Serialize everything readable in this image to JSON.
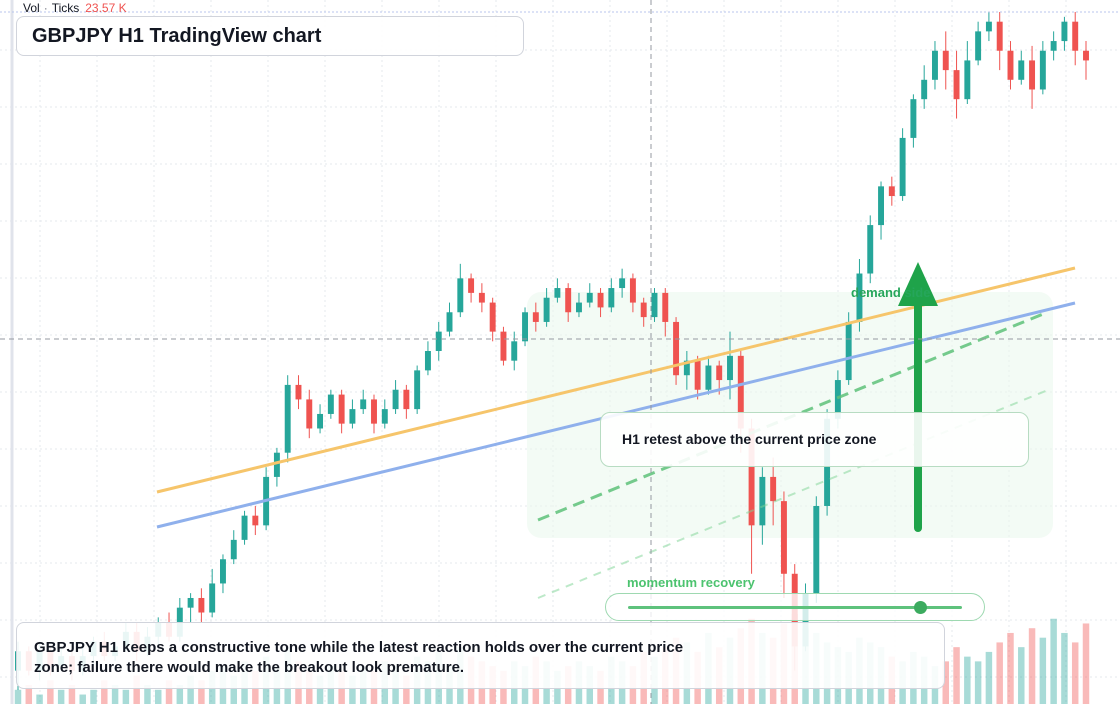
{
  "header": {
    "title": "GBPJPY H1 TradingView chart"
  },
  "volume_legend": {
    "label": "Vol",
    "source": "Ticks",
    "value": "23.57 K"
  },
  "annotations": {
    "callout": "H1 retest above the current price zone",
    "zone_label": "demand side",
    "momentum_label": "momentum recovery",
    "momentum_level": 0.87,
    "note": "GBPJPY H1 keeps a constructive tone while the latest reaction holds over the current price zone; failure there would make the breakout look premature."
  },
  "colors": {
    "up": "#26a69a",
    "down": "#ef5350",
    "trend_orange": "#f6c56b",
    "trend_blue": "#8fb0ec",
    "signal_green": "#1fa34a",
    "grid": "#e6e8ee"
  },
  "chart_data": {
    "type": "candlestick",
    "series": [
      {
        "name": "price",
        "relative_ohlc": [
          [
            40,
            44,
            36,
            46
          ],
          [
            44,
            40,
            39,
            45
          ],
          [
            40,
            44,
            38,
            46
          ],
          [
            44,
            41,
            39,
            45
          ],
          [
            41,
            43,
            40,
            45
          ],
          [
            43,
            40,
            38,
            44
          ],
          [
            40,
            43,
            39,
            45
          ],
          [
            43,
            46,
            41,
            47
          ],
          [
            46,
            43,
            42,
            48
          ],
          [
            43,
            45,
            42,
            46
          ],
          [
            45,
            48,
            44,
            50
          ],
          [
            48,
            44,
            42,
            50
          ],
          [
            44,
            47,
            43,
            49
          ],
          [
            47,
            50,
            45,
            51
          ],
          [
            50,
            47,
            46,
            52
          ],
          [
            47,
            53,
            46,
            55
          ],
          [
            53,
            55,
            50,
            56
          ],
          [
            55,
            52,
            50,
            57
          ],
          [
            52,
            58,
            51,
            61
          ],
          [
            58,
            63,
            56,
            64
          ],
          [
            63,
            67,
            62,
            69
          ],
          [
            67,
            72,
            66,
            73
          ],
          [
            72,
            70,
            68,
            74
          ],
          [
            70,
            80,
            69,
            82
          ],
          [
            80,
            85,
            78,
            86
          ],
          [
            85,
            99,
            83,
            101
          ],
          [
            99,
            96,
            94,
            101
          ],
          [
            96,
            90,
            88,
            98
          ],
          [
            90,
            93,
            89,
            95
          ],
          [
            93,
            97,
            92,
            98
          ],
          [
            97,
            91,
            89,
            98
          ],
          [
            91,
            94,
            90,
            96
          ],
          [
            94,
            96,
            93,
            98
          ],
          [
            96,
            91,
            89,
            97
          ],
          [
            91,
            94,
            90,
            96
          ],
          [
            94,
            98,
            93,
            100
          ],
          [
            98,
            94,
            92,
            99
          ],
          [
            94,
            102,
            93,
            103
          ],
          [
            102,
            106,
            101,
            108
          ],
          [
            106,
            110,
            104,
            112
          ],
          [
            110,
            114,
            109,
            116
          ],
          [
            114,
            121,
            113,
            124
          ],
          [
            121,
            118,
            116,
            122
          ],
          [
            118,
            116,
            114,
            120
          ],
          [
            116,
            110,
            108,
            117
          ],
          [
            110,
            104,
            103,
            111
          ],
          [
            104,
            108,
            102,
            110
          ],
          [
            108,
            114,
            107,
            115
          ],
          [
            114,
            112,
            110,
            116
          ],
          [
            112,
            117,
            111,
            119
          ],
          [
            117,
            119,
            116,
            121
          ],
          [
            119,
            114,
            112,
            120
          ],
          [
            114,
            116,
            113,
            118
          ],
          [
            116,
            118,
            115,
            120
          ],
          [
            118,
            115,
            113,
            119
          ],
          [
            115,
            119,
            114,
            121
          ],
          [
            119,
            121,
            117,
            123
          ],
          [
            121,
            116,
            114,
            122
          ],
          [
            116,
            113,
            111,
            117
          ],
          [
            113,
            118,
            112,
            119
          ],
          [
            118,
            112,
            109,
            119
          ],
          [
            112,
            101,
            99,
            113
          ],
          [
            101,
            104,
            98,
            106
          ],
          [
            104,
            98,
            96,
            105
          ],
          [
            98,
            103,
            97,
            105
          ],
          [
            103,
            100,
            97,
            104
          ],
          [
            100,
            105,
            96,
            110
          ],
          [
            105,
            90,
            85,
            106
          ],
          [
            90,
            70,
            60,
            92
          ],
          [
            70,
            80,
            66,
            82
          ],
          [
            80,
            75,
            70,
            84
          ],
          [
            75,
            60,
            55,
            77
          ],
          [
            60,
            45,
            40,
            62
          ],
          [
            45,
            56,
            44,
            58
          ],
          [
            56,
            74,
            54,
            76
          ],
          [
            74,
            92,
            72,
            94
          ],
          [
            92,
            100,
            90,
            102
          ],
          [
            100,
            112,
            99,
            114
          ],
          [
            112,
            122,
            110,
            125
          ],
          [
            122,
            132,
            120,
            134
          ],
          [
            132,
            140,
            129,
            141
          ],
          [
            140,
            138,
            136,
            142
          ],
          [
            138,
            150,
            137,
            152
          ],
          [
            150,
            158,
            148,
            159
          ],
          [
            158,
            162,
            156,
            165
          ],
          [
            162,
            168,
            160,
            170
          ],
          [
            168,
            164,
            160,
            172
          ],
          [
            164,
            158,
            154,
            168
          ],
          [
            158,
            166,
            157,
            170
          ],
          [
            166,
            172,
            165,
            174
          ],
          [
            172,
            174,
            170,
            176
          ],
          [
            174,
            168,
            164,
            176
          ],
          [
            168,
            162,
            160,
            170
          ],
          [
            162,
            166,
            161,
            168
          ],
          [
            166,
            160,
            156,
            169
          ],
          [
            160,
            168,
            159,
            170
          ],
          [
            168,
            170,
            166,
            172
          ],
          [
            170,
            174,
            168,
            175
          ],
          [
            174,
            168,
            165,
            176
          ],
          [
            168,
            166,
            162,
            170
          ]
        ]
      }
    ],
    "volume": [
      3,
      4,
      2,
      5,
      3,
      4,
      2,
      3,
      5,
      4,
      3,
      6,
      4,
      3,
      5,
      4,
      6,
      5,
      7,
      8,
      6,
      9,
      7,
      10,
      8,
      12,
      9,
      7,
      6,
      8,
      7,
      6,
      8,
      7,
      9,
      8,
      6,
      10,
      9,
      11,
      8,
      12,
      10,
      9,
      8,
      7,
      9,
      8,
      10,
      9,
      7,
      8,
      9,
      8,
      7,
      10,
      9,
      8,
      11,
      10,
      12,
      14,
      13,
      11,
      15,
      12,
      14,
      16,
      18,
      15,
      14,
      17,
      19,
      16,
      15,
      13,
      12,
      11,
      14,
      13,
      12,
      10,
      9,
      11,
      10,
      8,
      9,
      12,
      10,
      9,
      11,
      13,
      15,
      12,
      16,
      14,
      18,
      15,
      13,
      17
    ],
    "xlabel": "",
    "ylabel": ""
  }
}
